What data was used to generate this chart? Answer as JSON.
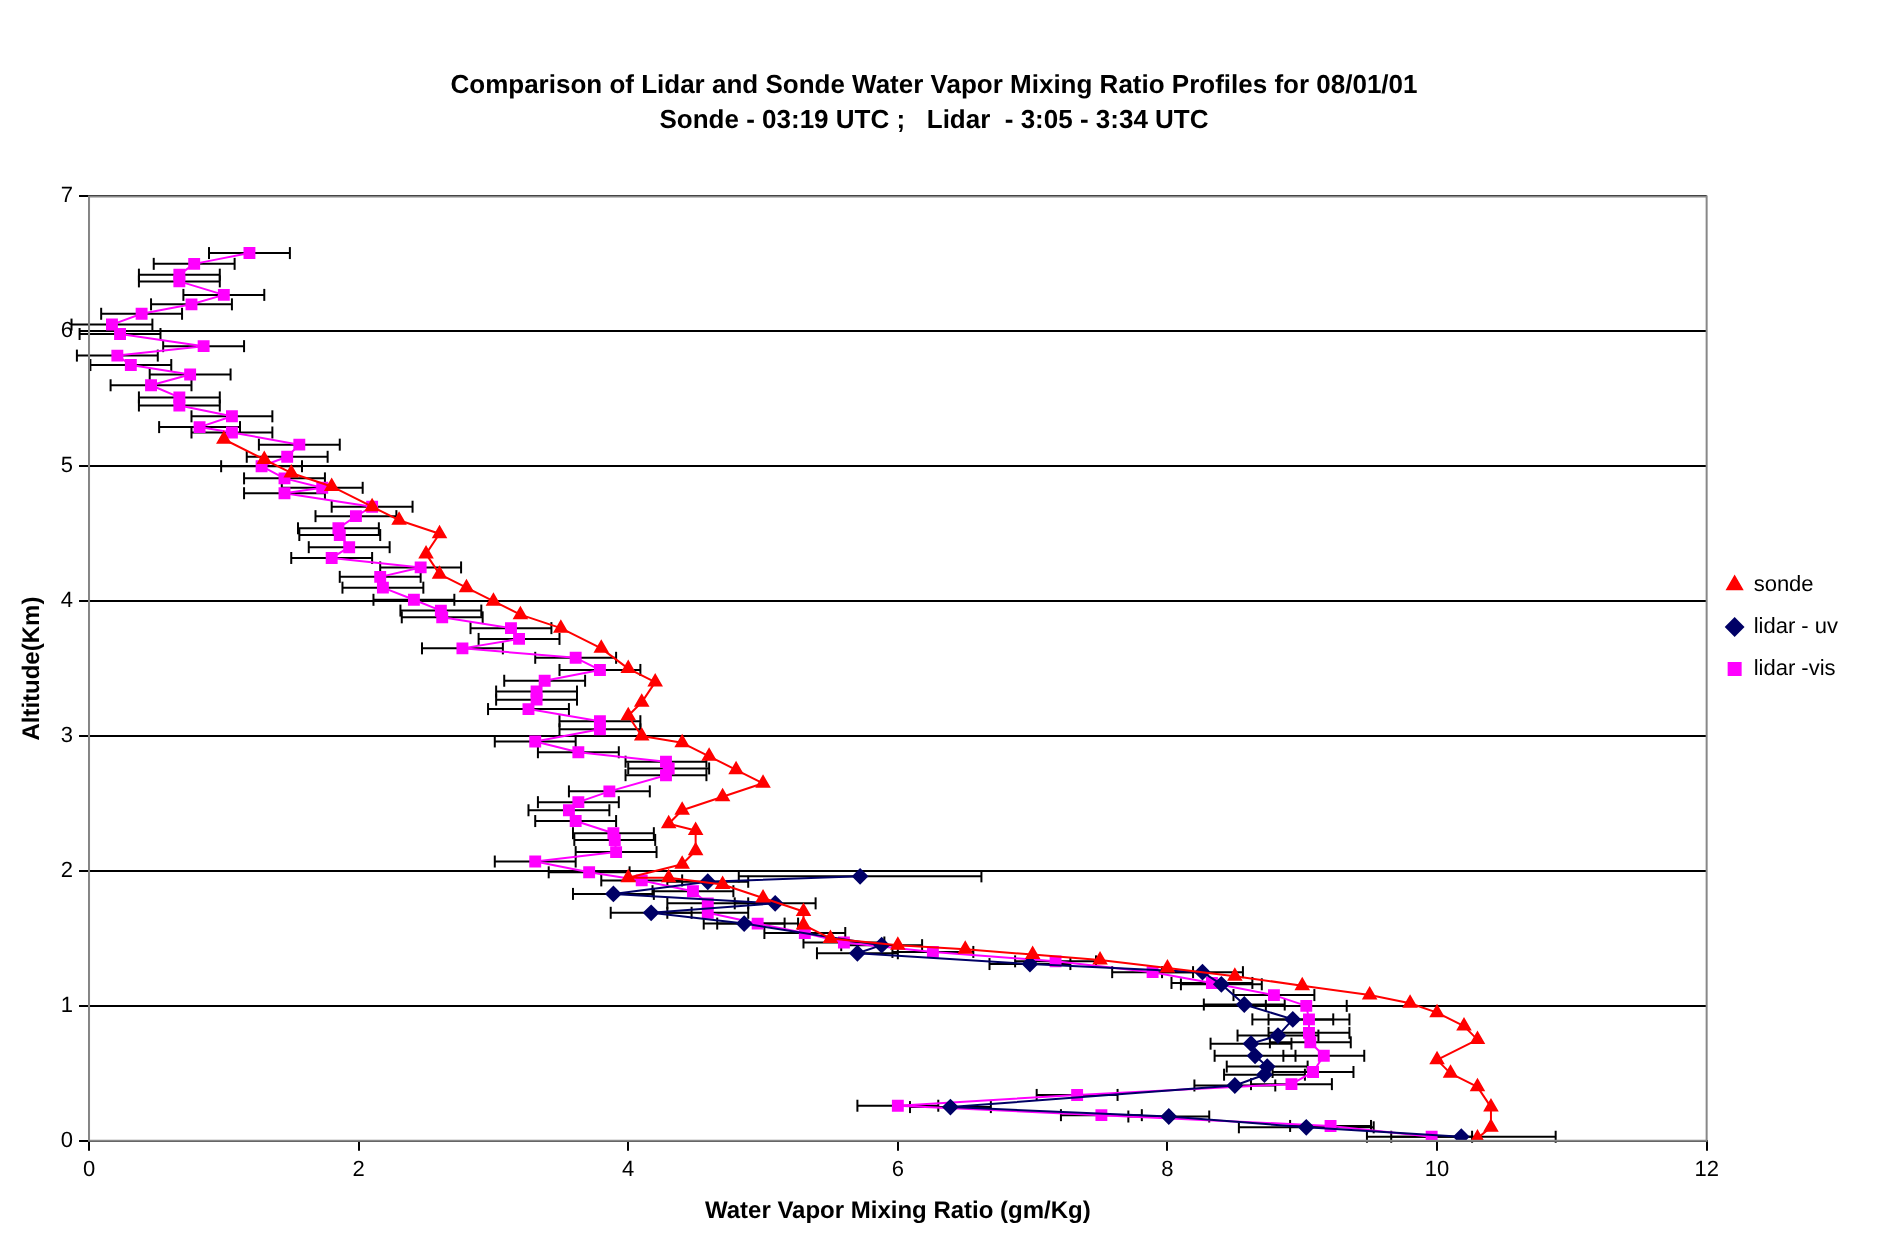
{
  "chart_data": {
    "type": "line",
    "title": "Comparison of Lidar and Sonde Water Vapor Mixing Ratio Profiles for 08/01/01",
    "subtitle": "Sonde - 03:19 UTC ;   Lidar  - 3:05 - 3:34 UTC",
    "xlabel": "Water Vapor Mixing Ratio (gm/Kg)",
    "ylabel": "Altitude(Km)",
    "xlim": [
      0,
      12
    ],
    "xticks": [
      0,
      2,
      4,
      6,
      8,
      10,
      12
    ],
    "ylim": [
      0,
      7
    ],
    "yticks": [
      0,
      1,
      2,
      3,
      4,
      5,
      6,
      7
    ],
    "grid": "y",
    "legend": "right",
    "line_style": "solid",
    "series": [
      {
        "name": "sonde",
        "color": "#ff0000",
        "marker": "triangle",
        "x": [
          1.0,
          1.3,
          1.5,
          1.8,
          2.1,
          2.3,
          2.6,
          2.5,
          2.6,
          2.8,
          3.0,
          3.2,
          3.5,
          3.8,
          4.0,
          4.2,
          4.1,
          4.0,
          4.1,
          4.4,
          4.6,
          4.8,
          5.0,
          4.7,
          4.4,
          4.3,
          4.5,
          4.5,
          4.4,
          4.0,
          4.3,
          4.7,
          5.0,
          5.3,
          5.3,
          5.5,
          6.0,
          6.5,
          7.0,
          7.5,
          8.0,
          8.5,
          9.0,
          9.5,
          9.8,
          10.0,
          10.2,
          10.3,
          10.0,
          10.1,
          10.3,
          10.4,
          10.4,
          10.3
        ],
        "values": [
          5.2,
          5.05,
          4.95,
          4.85,
          4.7,
          4.6,
          4.5,
          4.35,
          4.2,
          4.1,
          4.0,
          3.9,
          3.8,
          3.65,
          3.5,
          3.4,
          3.25,
          3.15,
          3.0,
          2.95,
          2.85,
          2.75,
          2.65,
          2.55,
          2.45,
          2.35,
          2.3,
          2.15,
          2.05,
          1.95,
          1.95,
          1.9,
          1.8,
          1.7,
          1.6,
          1.5,
          1.45,
          1.42,
          1.38,
          1.34,
          1.28,
          1.22,
          1.15,
          1.08,
          1.02,
          0.95,
          0.85,
          0.75,
          0.6,
          0.5,
          0.4,
          0.25,
          0.1,
          0.02
        ]
      },
      {
        "name": "lidar - uv",
        "color": "#000066",
        "marker": "diamond",
        "x": [
          5.72,
          4.59,
          3.89,
          5.09,
          4.17,
          4.86,
          5.88,
          5.7,
          6.98,
          8.26,
          8.4,
          8.57,
          8.93,
          8.82,
          8.62,
          8.65,
          8.74,
          8.72,
          8.5,
          6.39,
          8.01,
          9.03,
          10.18
        ],
        "values": [
          1.96,
          1.92,
          1.83,
          1.76,
          1.69,
          1.61,
          1.45,
          1.39,
          1.31,
          1.25,
          1.16,
          1.01,
          0.9,
          0.78,
          0.72,
          0.63,
          0.55,
          0.49,
          0.41,
          0.25,
          0.18,
          0.1,
          0.03
        ],
        "xerrors": [
          0.9,
          0.3,
          0.3,
          0.3,
          0.3,
          0.3,
          0.3,
          0.3,
          0.3,
          0.3,
          0.3,
          0.3,
          0.3,
          0.3,
          0.3,
          0.3,
          0.3,
          0.3,
          0.3,
          0.3,
          0.3,
          0.5,
          0.7
        ]
      },
      {
        "name": "lidar -vis",
        "color": "#ff00ff",
        "marker": "square",
        "x": [
          1.19,
          0.78,
          0.67,
          0.67,
          1.0,
          0.76,
          0.39,
          0.17,
          0.23,
          0.85,
          0.21,
          0.31,
          0.75,
          0.46,
          0.67,
          0.67,
          1.06,
          0.82,
          1.06,
          1.56,
          1.47,
          1.28,
          1.45,
          1.73,
          1.45,
          2.1,
          1.98,
          1.85,
          1.86,
          1.93,
          1.8,
          2.46,
          2.16,
          2.18,
          2.41,
          2.61,
          2.62,
          3.13,
          3.19,
          2.77,
          3.61,
          3.79,
          3.38,
          3.32,
          3.32,
          3.26,
          3.79,
          3.79,
          3.31,
          3.63,
          4.28,
          4.3,
          4.28,
          3.86,
          3.63,
          3.56,
          3.61,
          3.89,
          3.9,
          3.91,
          3.31,
          3.71,
          4.1,
          4.48,
          4.59,
          4.59,
          4.96,
          5.31,
          5.6,
          6.26,
          7.17,
          7.89,
          8.33,
          8.79,
          9.03,
          9.05,
          9.05,
          9.06,
          9.16,
          9.08,
          8.92,
          7.33,
          6.0,
          7.51,
          9.21,
          9.96
        ],
        "values": [
          6.58,
          6.5,
          6.42,
          6.37,
          6.27,
          6.2,
          6.13,
          6.05,
          5.98,
          5.89,
          5.82,
          5.75,
          5.68,
          5.6,
          5.51,
          5.45,
          5.37,
          5.29,
          5.25,
          5.16,
          5.07,
          5.0,
          4.91,
          4.84,
          4.8,
          4.7,
          4.63,
          4.54,
          4.49,
          4.4,
          4.32,
          4.25,
          4.18,
          4.1,
          4.01,
          3.93,
          3.88,
          3.8,
          3.72,
          3.65,
          3.58,
          3.49,
          3.41,
          3.33,
          3.27,
          3.2,
          3.11,
          3.05,
          2.96,
          2.88,
          2.81,
          2.76,
          2.71,
          2.59,
          2.51,
          2.45,
          2.37,
          2.28,
          2.23,
          2.14,
          2.07,
          1.99,
          1.93,
          1.85,
          1.76,
          1.69,
          1.61,
          1.54,
          1.47,
          1.4,
          1.33,
          1.25,
          1.17,
          1.08,
          1.0,
          0.9,
          0.8,
          0.73,
          0.63,
          0.51,
          0.42,
          0.34,
          0.26,
          0.19,
          0.11,
          0.03
        ],
        "xerrors": [
          0.3,
          0.3,
          0.3,
          0.3,
          0.3,
          0.3,
          0.3,
          0.3,
          0.3,
          0.3,
          0.3,
          0.3,
          0.3,
          0.3,
          0.3,
          0.3,
          0.3,
          0.3,
          0.3,
          0.3,
          0.3,
          0.3,
          0.3,
          0.3,
          0.3,
          0.3,
          0.3,
          0.3,
          0.3,
          0.3,
          0.3,
          0.3,
          0.3,
          0.3,
          0.3,
          0.3,
          0.3,
          0.3,
          0.3,
          0.3,
          0.3,
          0.3,
          0.3,
          0.3,
          0.3,
          0.3,
          0.3,
          0.3,
          0.3,
          0.3,
          0.3,
          0.3,
          0.3,
          0.3,
          0.3,
          0.3,
          0.3,
          0.3,
          0.3,
          0.3,
          0.3,
          0.3,
          0.3,
          0.3,
          0.3,
          0.3,
          0.3,
          0.3,
          0.3,
          0.3,
          0.3,
          0.3,
          0.3,
          0.3,
          0.3,
          0.3,
          0.3,
          0.3,
          0.3,
          0.3,
          0.3,
          0.3,
          0.3,
          0.3,
          0.3,
          0.3
        ]
      }
    ]
  }
}
